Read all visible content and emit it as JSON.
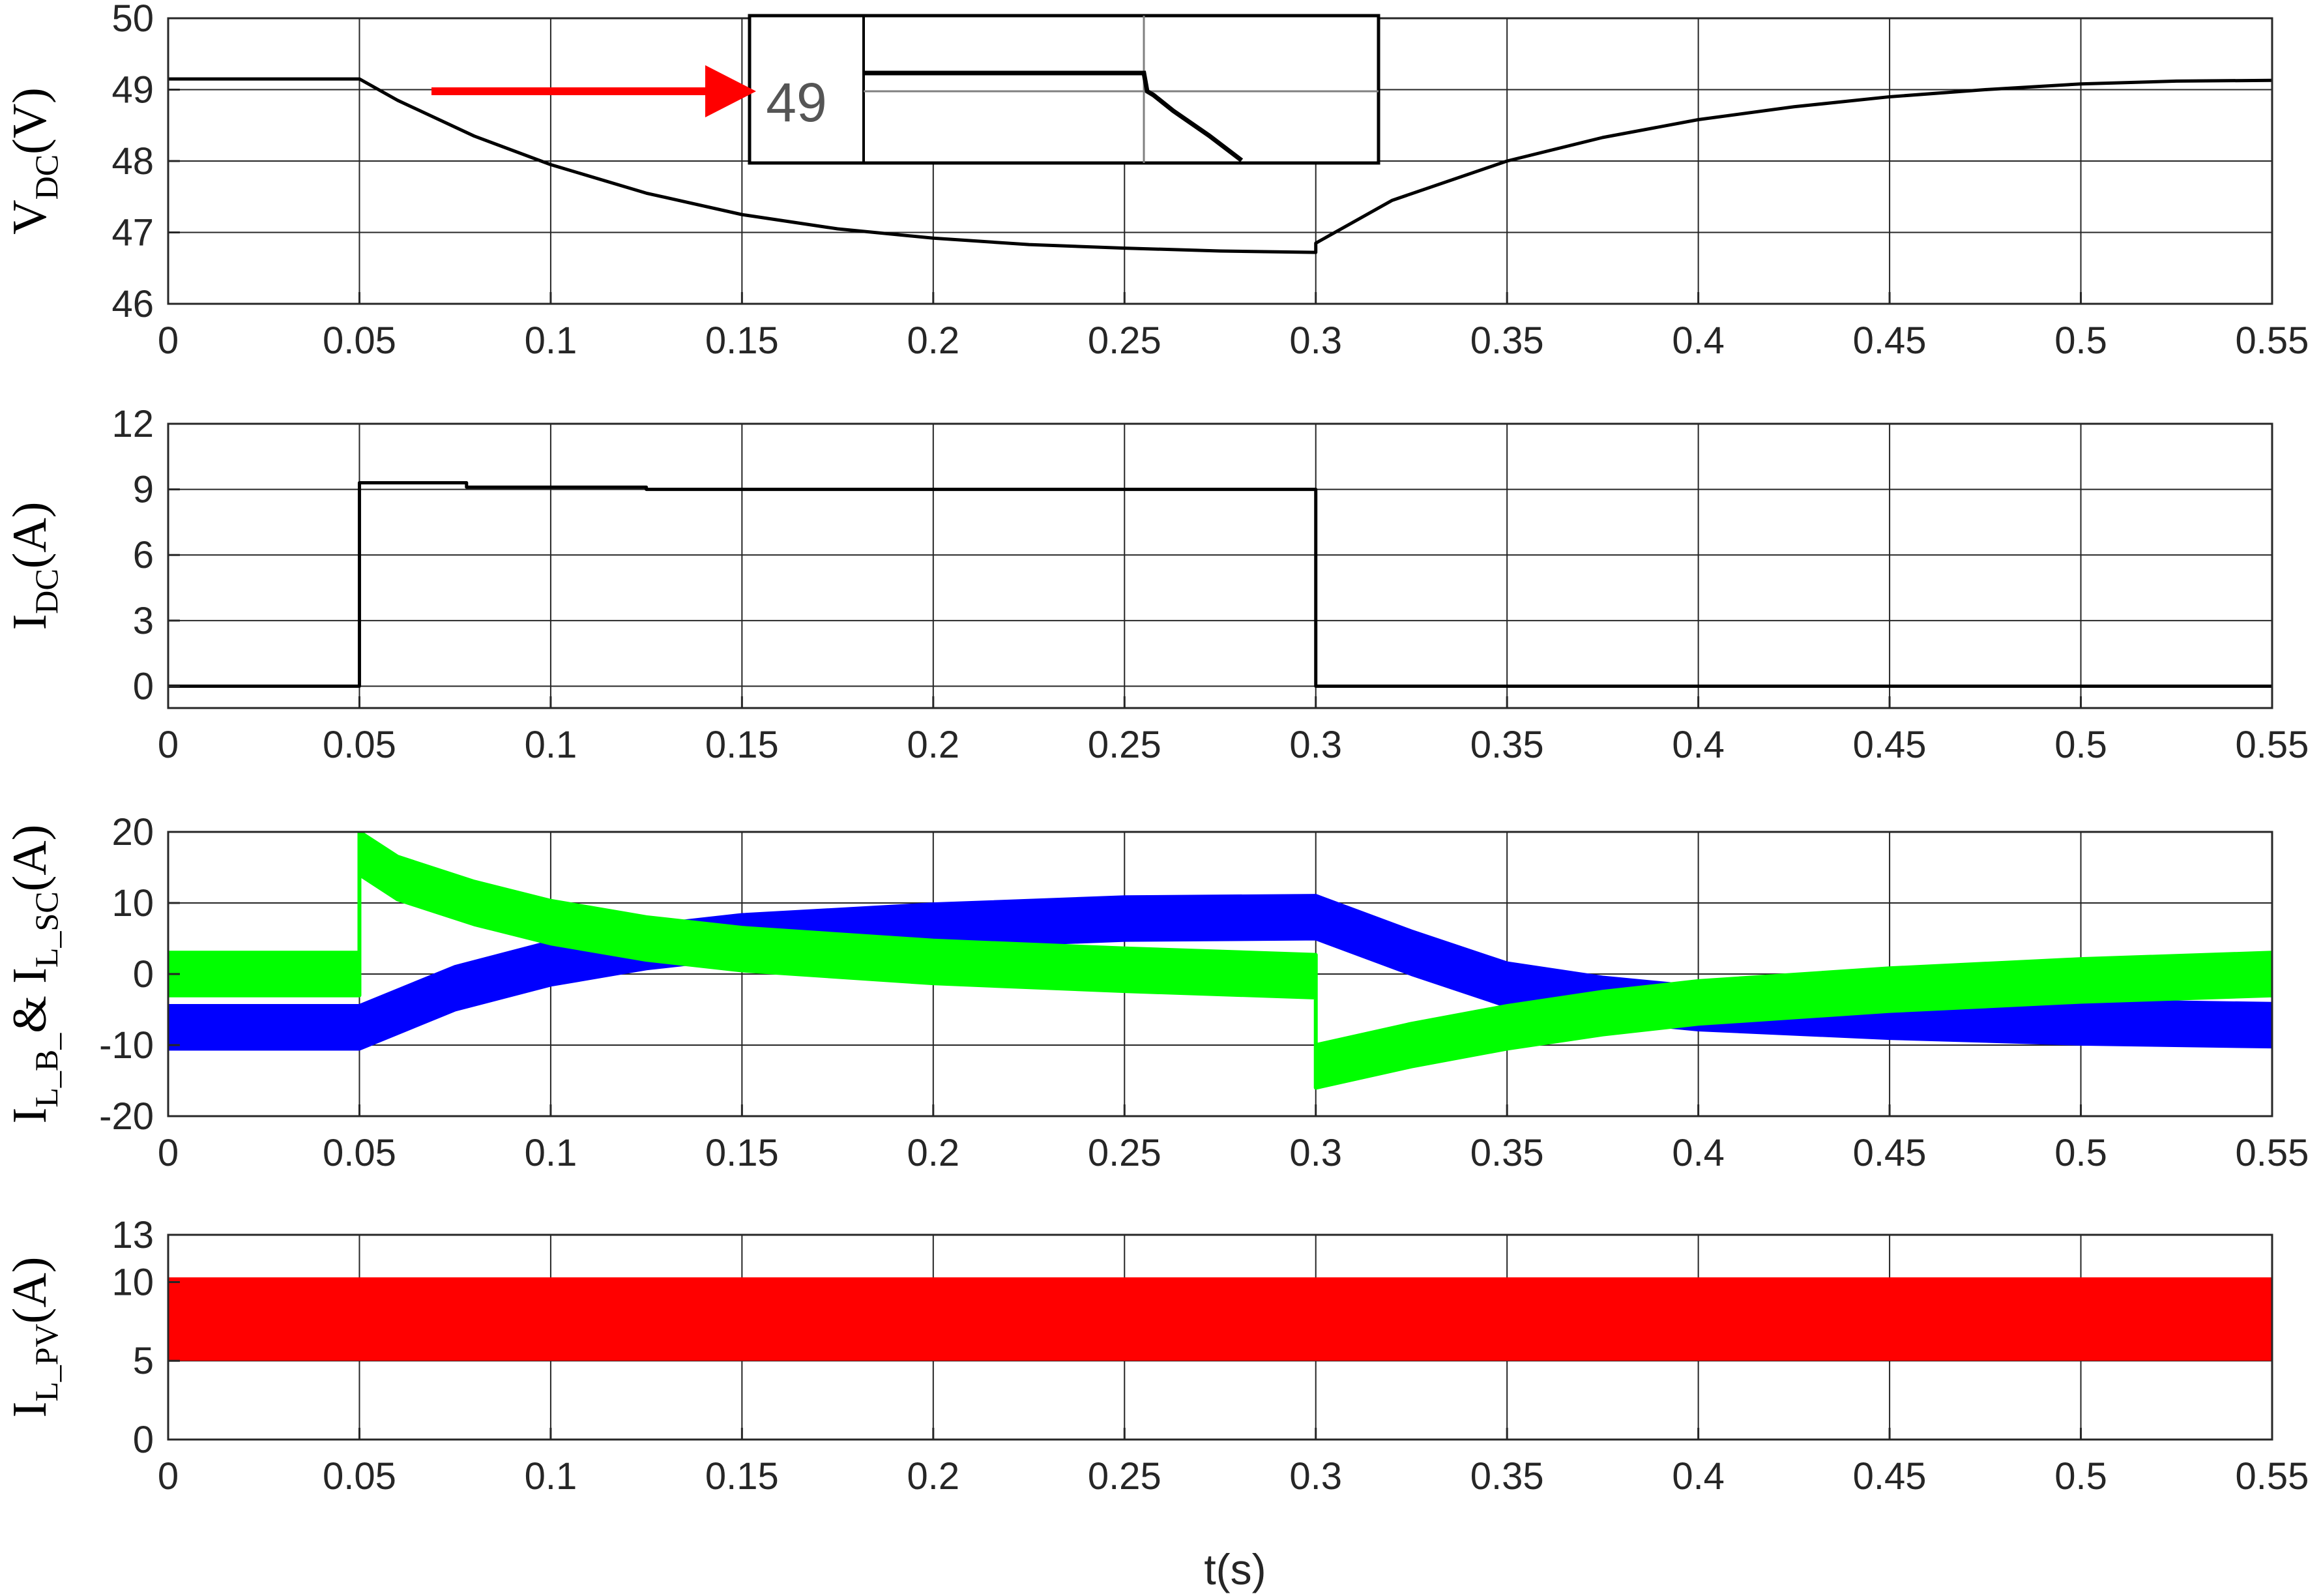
{
  "xlabel": "t(s)",
  "colors": {
    "battery": "#0000ff",
    "supercap": "#00ff00",
    "pv": "#ff0000",
    "trace": "#000000",
    "arrow": "#ff0000"
  },
  "chart_data": [
    {
      "type": "line",
      "ylabel": {
        "main": "V",
        "sub": "DC",
        "unit": "(V)"
      },
      "xlim": [
        0,
        0.55
      ],
      "ylim": [
        46,
        50
      ],
      "xticks": [
        "0",
        "0.05",
        "0.1",
        "0.15",
        "0.2",
        "0.25",
        "0.3",
        "0.35",
        "0.4",
        "0.45",
        "0.5",
        "0.55"
      ],
      "yticks": [
        "46",
        "47",
        "48",
        "49",
        "50"
      ],
      "grid": true,
      "series": [
        {
          "color": "#000000",
          "x": [
            0,
            0.05,
            0.06,
            0.08,
            0.1,
            0.125,
            0.15,
            0.175,
            0.2,
            0.225,
            0.25,
            0.275,
            0.3,
            0.3,
            0.32,
            0.35,
            0.375,
            0.4,
            0.425,
            0.45,
            0.475,
            0.5,
            0.525,
            0.55
          ],
          "y": [
            49.15,
            49.15,
            48.85,
            48.35,
            47.95,
            47.55,
            47.25,
            47.05,
            46.92,
            46.83,
            46.78,
            46.74,
            46.72,
            46.85,
            47.45,
            48.0,
            48.33,
            48.58,
            48.76,
            48.9,
            49.0,
            49.08,
            49.12,
            49.13
          ]
        }
      ],
      "inset": {
        "label": "49"
      }
    },
    {
      "type": "line",
      "ylabel": {
        "main": "I",
        "sub": "DC",
        "unit": "(A)"
      },
      "xlim": [
        0,
        0.55
      ],
      "ylim": [
        -1,
        12
      ],
      "xticks": [
        "0",
        "0.05",
        "0.1",
        "0.15",
        "0.2",
        "0.25",
        "0.3",
        "0.35",
        "0.4",
        "0.45",
        "0.5",
        "0.55"
      ],
      "yticks": [
        "0",
        "3",
        "6",
        "9",
        "12"
      ],
      "grid": true,
      "series": [
        {
          "color": "#000000",
          "x": [
            0,
            0.05,
            0.05,
            0.078,
            0.078,
            0.125,
            0.125,
            0.3,
            0.3,
            0.55
          ],
          "y": [
            0,
            0,
            9.3,
            9.3,
            9.1,
            9.1,
            9.0,
            9.0,
            0,
            0
          ]
        }
      ]
    },
    {
      "type": "area",
      "ylabel": {
        "main": "I",
        "sub": "L_B_",
        "mid": "& I",
        "sub2": "L_SC",
        "unit": "(A)"
      },
      "xlim": [
        0,
        0.55
      ],
      "ylim": [
        -20,
        20
      ],
      "xticks": [
        "0",
        "0.05",
        "0.1",
        "0.15",
        "0.2",
        "0.25",
        "0.3",
        "0.35",
        "0.4",
        "0.45",
        "0.5",
        "0.55"
      ],
      "yticks": [
        "-20",
        "-10",
        "0",
        "10",
        "20"
      ],
      "grid": true,
      "series": [
        {
          "color": "#0000ff",
          "x": [
            0,
            0.05,
            0.075,
            0.1,
            0.125,
            0.15,
            0.2,
            0.25,
            0.3,
            0.325,
            0.35,
            0.375,
            0.4,
            0.45,
            0.5,
            0.55
          ],
          "y": [
            -7.5,
            -7.5,
            -2.0,
            1.5,
            3.8,
            5.3,
            6.8,
            7.8,
            8.0,
            3.0,
            -1.5,
            -3.5,
            -4.8,
            -6.0,
            -6.8,
            -7.2
          ],
          "band": 3.0
        },
        {
          "color": "#00ff00",
          "x": [
            0,
            0.05,
            0.05,
            0.06,
            0.08,
            0.1,
            0.125,
            0.15,
            0.2,
            0.25,
            0.3,
            0.3,
            0.325,
            0.35,
            0.375,
            0.4,
            0.45,
            0.5,
            0.55
          ],
          "y": [
            0,
            0,
            17.0,
            13.5,
            10.0,
            7.3,
            5.0,
            3.5,
            1.7,
            0.6,
            -0.3,
            -13.0,
            -10.0,
            -7.5,
            -5.5,
            -4.0,
            -2.2,
            -0.9,
            0.0
          ],
          "band": 3.0
        }
      ]
    },
    {
      "type": "area",
      "ylabel": {
        "main": "I",
        "sub": "L_PV",
        "unit": "(A)"
      },
      "xlim": [
        0,
        0.55
      ],
      "ylim": [
        0,
        13
      ],
      "xticks": [
        "0",
        "0.05",
        "0.1",
        "0.15",
        "0.2",
        "0.25",
        "0.3",
        "0.35",
        "0.4",
        "0.45",
        "0.5",
        "0.55"
      ],
      "yticks": [
        "0",
        "5",
        "10",
        "13"
      ],
      "grid": true,
      "series": [
        {
          "color": "#ff0000",
          "x": [
            0,
            0.55
          ],
          "lower": [
            5.0,
            5.0
          ],
          "upper": [
            10.3,
            10.3
          ]
        }
      ]
    }
  ]
}
